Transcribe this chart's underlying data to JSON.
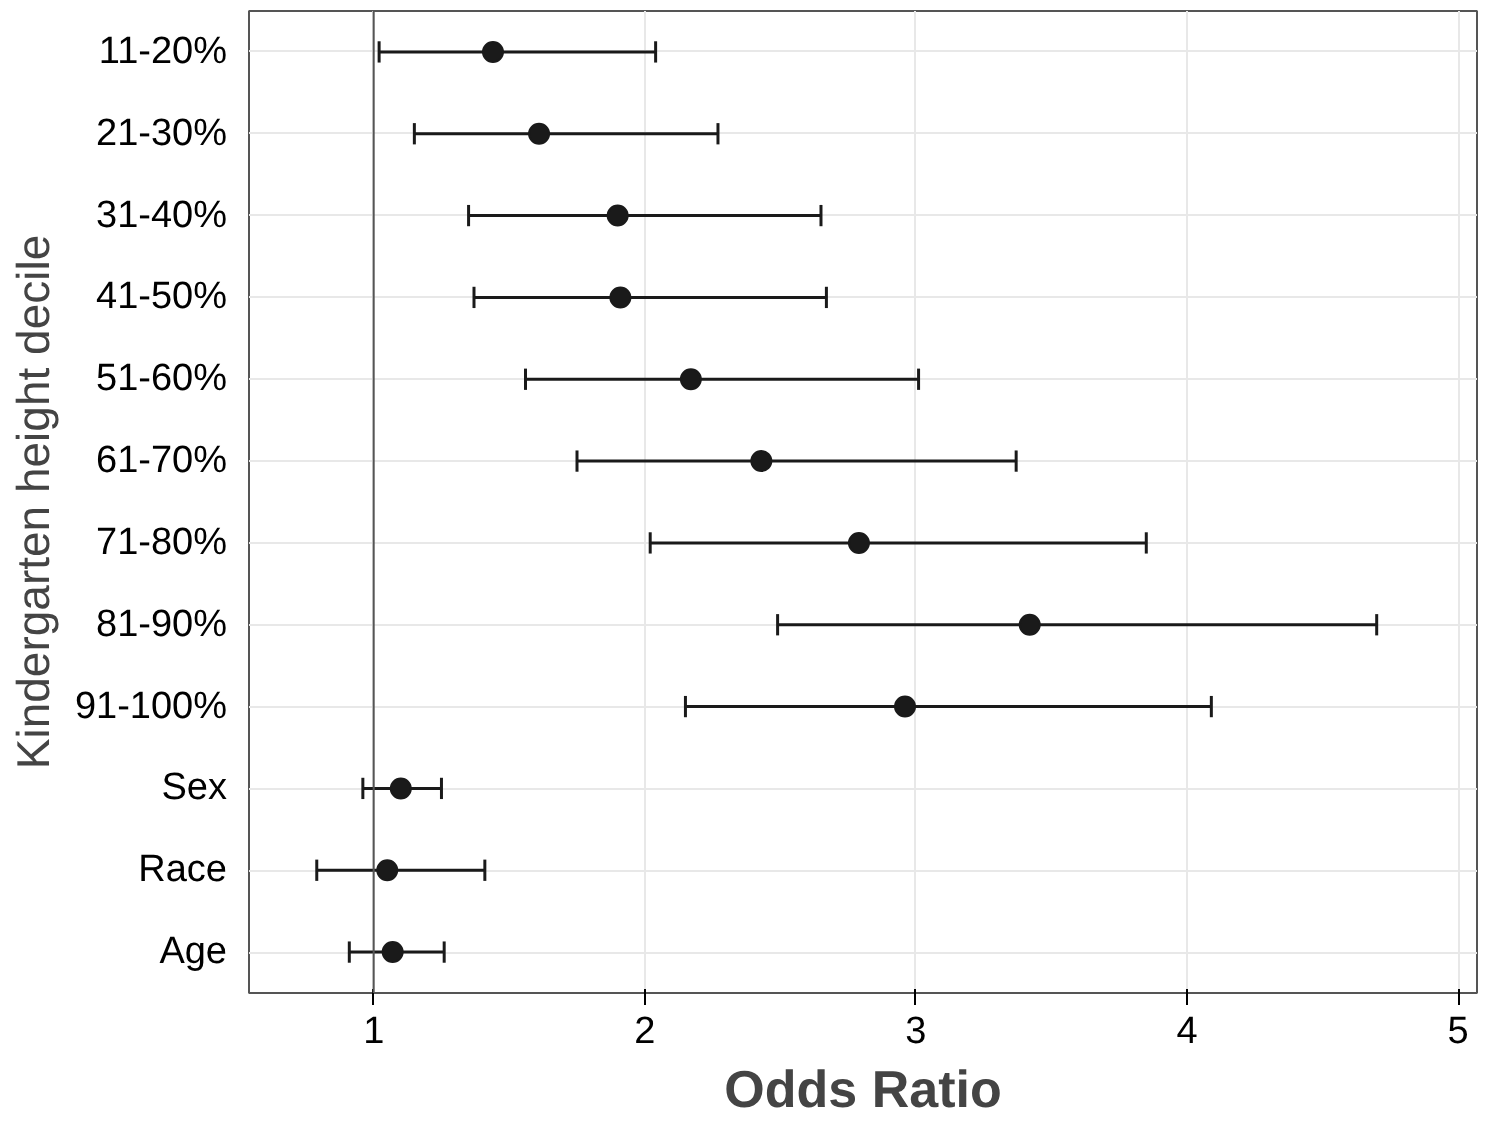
{
  "chart_data": {
    "type": "scatter",
    "orientation": "horizontal",
    "ylabel": "Kindergarten height decile",
    "xlabel": "Odds Ratio",
    "categories": [
      "11-20%",
      "21-30%",
      "31-40%",
      "41-50%",
      "51-60%",
      "61-70%",
      "71-80%",
      "81-90%",
      "91-100%",
      "Sex",
      "Race",
      "Age"
    ],
    "values": [
      1.44,
      1.61,
      1.9,
      1.91,
      2.17,
      2.43,
      2.79,
      3.42,
      2.96,
      1.1,
      1.05,
      1.07
    ],
    "errors": [
      [
        1.02,
        2.04
      ],
      [
        1.15,
        2.27
      ],
      [
        1.35,
        2.65
      ],
      [
        1.37,
        2.67
      ],
      [
        1.56,
        3.01
      ],
      [
        1.75,
        3.37
      ],
      [
        2.02,
        3.85
      ],
      [
        2.49,
        4.7
      ],
      [
        2.15,
        4.09
      ],
      [
        0.96,
        1.25
      ],
      [
        0.79,
        1.41
      ],
      [
        0.91,
        1.26
      ]
    ],
    "color": "#1a1a1a",
    "marker": "circle",
    "grid": true,
    "xlim": [
      0.54,
      5.07
    ],
    "xticks": [
      1,
      2,
      3,
      4,
      5
    ],
    "ref_lines": [
      {
        "axis": "x",
        "value": 1,
        "color": "#555555"
      }
    ]
  }
}
